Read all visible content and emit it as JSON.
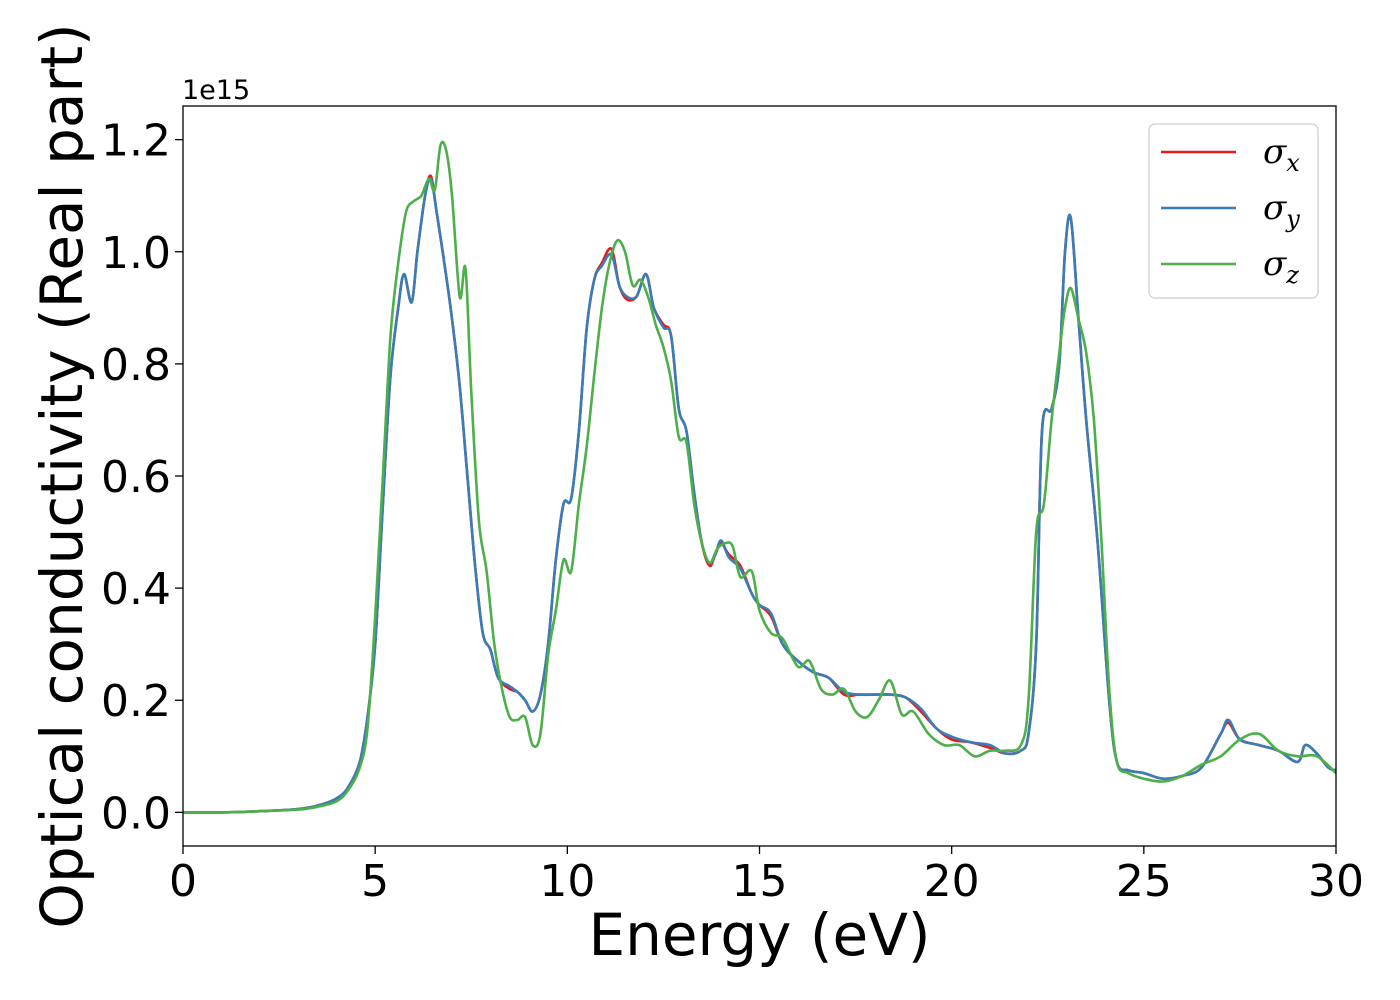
{
  "chart_data": {
    "type": "line",
    "title": "",
    "xlabel": "Energy (eV)",
    "ylabel": "Optical conductivity (Real part)",
    "y_offset_label": "1e15",
    "y_scale_factor": 1000000000000000.0,
    "xlim": [
      0,
      30
    ],
    "ylim": [
      -0.06,
      1.26
    ],
    "xticks": [
      0,
      5,
      10,
      15,
      20,
      25,
      30
    ],
    "xtick_labels": [
      "0",
      "5",
      "10",
      "15",
      "20",
      "25",
      "30"
    ],
    "yticks": [
      0.0,
      0.2,
      0.4,
      0.6,
      0.8,
      1.0,
      1.2
    ],
    "ytick_labels": [
      "0.0",
      "0.2",
      "0.4",
      "0.6",
      "0.8",
      "1.0",
      "1.2"
    ],
    "grid": false,
    "legend_position": "top-right",
    "series": [
      {
        "name": "σx",
        "symbol": "σ",
        "subscript": "x",
        "color": "#e41a1c",
        "x": [
          0,
          1,
          2,
          3,
          3.5,
          4,
          4.3,
          4.6,
          4.8,
          5.0,
          5.2,
          5.4,
          5.6,
          5.75,
          5.95,
          6.1,
          6.3,
          6.45,
          6.6,
          6.8,
          7.0,
          7.2,
          7.4,
          7.6,
          7.8,
          8.0,
          8.2,
          8.5,
          8.7,
          8.9,
          9.1,
          9.3,
          9.5,
          9.7,
          9.9,
          10.1,
          10.3,
          10.5,
          10.7,
          10.9,
          11.15,
          11.35,
          11.55,
          11.8,
          12.05,
          12.25,
          12.5,
          12.7,
          12.9,
          13.1,
          13.3,
          13.5,
          13.7,
          13.85,
          14.0,
          14.2,
          14.5,
          14.8,
          15.0,
          15.3,
          15.6,
          16.0,
          16.4,
          16.8,
          17.2,
          17.6,
          18.0,
          18.4,
          18.8,
          19.2,
          19.6,
          20.0,
          20.5,
          21.0,
          21.4,
          21.8,
          22.0,
          22.2,
          22.35,
          22.6,
          22.8,
          22.95,
          23.1,
          23.3,
          23.5,
          23.8,
          24.1,
          24.3,
          24.6,
          25.0,
          25.5,
          26.0,
          26.5,
          27.0,
          27.2,
          27.5,
          28.0,
          28.5,
          29.0,
          29.2,
          29.5,
          29.8,
          30.0
        ],
        "y": [
          0.0,
          0.0,
          0.002,
          0.006,
          0.012,
          0.025,
          0.045,
          0.09,
          0.17,
          0.3,
          0.55,
          0.78,
          0.9,
          0.96,
          0.91,
          1.0,
          1.1,
          1.135,
          1.07,
          0.98,
          0.88,
          0.76,
          0.6,
          0.44,
          0.32,
          0.29,
          0.24,
          0.22,
          0.215,
          0.2,
          0.18,
          0.21,
          0.3,
          0.45,
          0.55,
          0.56,
          0.68,
          0.86,
          0.95,
          0.98,
          1.005,
          0.94,
          0.915,
          0.92,
          0.96,
          0.9,
          0.87,
          0.85,
          0.72,
          0.68,
          0.57,
          0.48,
          0.44,
          0.46,
          0.48,
          0.46,
          0.44,
          0.39,
          0.37,
          0.35,
          0.3,
          0.27,
          0.25,
          0.24,
          0.21,
          0.21,
          0.21,
          0.21,
          0.205,
          0.18,
          0.15,
          0.13,
          0.125,
          0.115,
          0.105,
          0.11,
          0.14,
          0.3,
          0.68,
          0.72,
          0.8,
          1.0,
          1.06,
          0.88,
          0.7,
          0.48,
          0.2,
          0.09,
          0.075,
          0.07,
          0.06,
          0.065,
          0.08,
          0.14,
          0.16,
          0.13,
          0.12,
          0.11,
          0.09,
          0.12,
          0.105,
          0.08,
          0.075
        ]
      },
      {
        "name": "σy",
        "symbol": "σ",
        "subscript": "y",
        "color": "#377eb8",
        "x": [
          0,
          1,
          2,
          3,
          3.5,
          4,
          4.3,
          4.6,
          4.8,
          5.0,
          5.2,
          5.4,
          5.6,
          5.75,
          5.95,
          6.1,
          6.3,
          6.45,
          6.6,
          6.8,
          7.0,
          7.2,
          7.4,
          7.6,
          7.8,
          8.0,
          8.2,
          8.5,
          8.7,
          8.9,
          9.1,
          9.3,
          9.5,
          9.7,
          9.9,
          10.1,
          10.3,
          10.5,
          10.7,
          10.9,
          11.15,
          11.35,
          11.55,
          11.8,
          12.05,
          12.25,
          12.5,
          12.7,
          12.9,
          13.1,
          13.3,
          13.5,
          13.7,
          13.85,
          14.0,
          14.2,
          14.5,
          14.8,
          15.0,
          15.3,
          15.6,
          16.0,
          16.4,
          16.8,
          17.2,
          17.6,
          18.0,
          18.4,
          18.8,
          19.2,
          19.6,
          20.0,
          20.5,
          21.0,
          21.4,
          21.8,
          22.0,
          22.2,
          22.35,
          22.6,
          22.8,
          22.95,
          23.1,
          23.3,
          23.5,
          23.8,
          24.1,
          24.3,
          24.6,
          25.0,
          25.5,
          26.0,
          26.5,
          27.0,
          27.2,
          27.5,
          28.0,
          28.5,
          29.0,
          29.2,
          29.5,
          29.8,
          30.0
        ],
        "y": [
          0.0,
          0.0,
          0.002,
          0.006,
          0.012,
          0.025,
          0.045,
          0.09,
          0.17,
          0.3,
          0.55,
          0.78,
          0.9,
          0.96,
          0.91,
          1.0,
          1.1,
          1.13,
          1.07,
          0.98,
          0.88,
          0.76,
          0.6,
          0.44,
          0.32,
          0.29,
          0.24,
          0.225,
          0.215,
          0.2,
          0.18,
          0.21,
          0.3,
          0.45,
          0.55,
          0.56,
          0.68,
          0.86,
          0.95,
          0.975,
          0.995,
          0.94,
          0.92,
          0.92,
          0.96,
          0.9,
          0.865,
          0.85,
          0.72,
          0.68,
          0.57,
          0.48,
          0.445,
          0.46,
          0.485,
          0.455,
          0.435,
          0.39,
          0.37,
          0.355,
          0.3,
          0.27,
          0.25,
          0.24,
          0.215,
          0.21,
          0.21,
          0.21,
          0.205,
          0.185,
          0.15,
          0.135,
          0.125,
          0.12,
          0.105,
          0.11,
          0.14,
          0.3,
          0.68,
          0.72,
          0.8,
          1.0,
          1.06,
          0.88,
          0.7,
          0.48,
          0.2,
          0.09,
          0.075,
          0.07,
          0.06,
          0.065,
          0.08,
          0.14,
          0.165,
          0.13,
          0.12,
          0.11,
          0.09,
          0.12,
          0.105,
          0.08,
          0.075
        ]
      },
      {
        "name": "σz",
        "symbol": "σ",
        "subscript": "z",
        "color": "#4daf4a",
        "x": [
          0,
          1,
          2,
          3,
          3.5,
          4,
          4.3,
          4.6,
          4.8,
          5.0,
          5.2,
          5.4,
          5.6,
          5.8,
          6.0,
          6.2,
          6.4,
          6.55,
          6.7,
          6.85,
          7.0,
          7.2,
          7.35,
          7.5,
          7.7,
          7.9,
          8.1,
          8.3,
          8.5,
          8.7,
          8.9,
          9.1,
          9.3,
          9.5,
          9.7,
          9.9,
          10.1,
          10.3,
          10.5,
          10.7,
          10.9,
          11.1,
          11.3,
          11.5,
          11.7,
          11.9,
          12.1,
          12.3,
          12.5,
          12.7,
          12.9,
          13.1,
          13.3,
          13.5,
          13.7,
          13.9,
          14.1,
          14.3,
          14.5,
          14.8,
          15.0,
          15.3,
          15.6,
          16.0,
          16.3,
          16.6,
          16.9,
          17.2,
          17.5,
          17.8,
          18.1,
          18.4,
          18.7,
          19.0,
          19.4,
          19.8,
          20.2,
          20.6,
          21.0,
          21.4,
          21.8,
          22.0,
          22.2,
          22.4,
          22.6,
          22.8,
          22.95,
          23.1,
          23.3,
          23.5,
          23.7,
          23.9,
          24.1,
          24.3,
          24.6,
          25.0,
          25.5,
          26.0,
          26.5,
          27.0,
          27.5,
          28.0,
          28.5,
          29.0,
          29.5,
          30.0
        ],
        "y": [
          0.0,
          0.0,
          0.002,
          0.005,
          0.01,
          0.02,
          0.04,
          0.08,
          0.15,
          0.35,
          0.6,
          0.85,
          0.98,
          1.07,
          1.09,
          1.1,
          1.13,
          1.11,
          1.19,
          1.18,
          1.1,
          0.92,
          0.97,
          0.75,
          0.52,
          0.43,
          0.3,
          0.22,
          0.17,
          0.165,
          0.17,
          0.12,
          0.14,
          0.28,
          0.36,
          0.45,
          0.43,
          0.55,
          0.65,
          0.78,
          0.9,
          0.98,
          1.02,
          1.0,
          0.94,
          0.95,
          0.92,
          0.87,
          0.83,
          0.77,
          0.67,
          0.66,
          0.55,
          0.48,
          0.445,
          0.47,
          0.48,
          0.475,
          0.42,
          0.43,
          0.36,
          0.32,
          0.31,
          0.26,
          0.27,
          0.22,
          0.21,
          0.22,
          0.18,
          0.17,
          0.2,
          0.235,
          0.175,
          0.18,
          0.14,
          0.12,
          0.12,
          0.1,
          0.11,
          0.11,
          0.12,
          0.2,
          0.5,
          0.55,
          0.7,
          0.82,
          0.9,
          0.935,
          0.88,
          0.82,
          0.7,
          0.48,
          0.22,
          0.09,
          0.07,
          0.06,
          0.055,
          0.065,
          0.085,
          0.1,
          0.13,
          0.14,
          0.11,
          0.1,
          0.1,
          0.07
        ]
      }
    ]
  }
}
